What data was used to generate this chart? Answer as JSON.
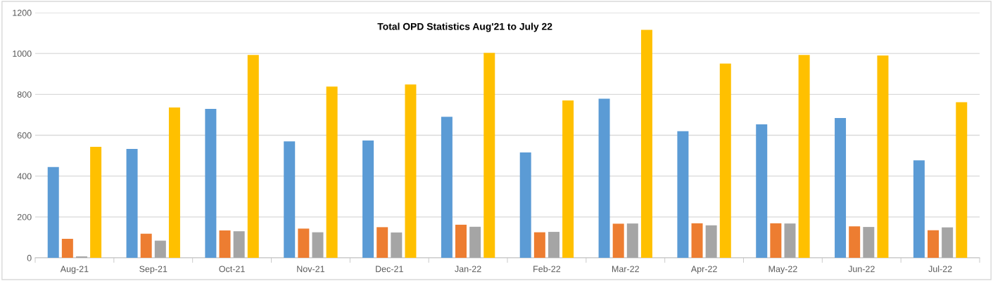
{
  "chart_data": {
    "type": "bar",
    "title": "Total OPD Statistics Aug'21 to July 22",
    "categories": [
      "Aug-21",
      "Sep-21",
      "Oct-21",
      "Nov-21",
      "Dec-21",
      "Jan-22",
      "Feb-22",
      "Mar-22",
      "Apr-22",
      "May-22",
      "Jun-22",
      "Jul-22"
    ],
    "series": [
      {
        "color": "#5b9bd5",
        "values": [
          444,
          533,
          729,
          570,
          574,
          690,
          516,
          779,
          620,
          653,
          684,
          477
        ]
      },
      {
        "color": "#ed7d31",
        "values": [
          93,
          118,
          134,
          143,
          150,
          162,
          125,
          167,
          169,
          169,
          154,
          135
        ]
      },
      {
        "color": "#a5a5a5",
        "values": [
          7,
          84,
          130,
          125,
          124,
          152,
          127,
          168,
          159,
          168,
          151,
          149
        ]
      },
      {
        "color": "#ffc000",
        "values": [
          543,
          736,
          993,
          838,
          848,
          1003,
          770,
          1116,
          951,
          993,
          990,
          762
        ]
      }
    ],
    "ylim": [
      0,
      1200
    ],
    "yticks": [
      0,
      200,
      400,
      600,
      800,
      1000,
      1200
    ],
    "grid": "y",
    "legend": false
  }
}
